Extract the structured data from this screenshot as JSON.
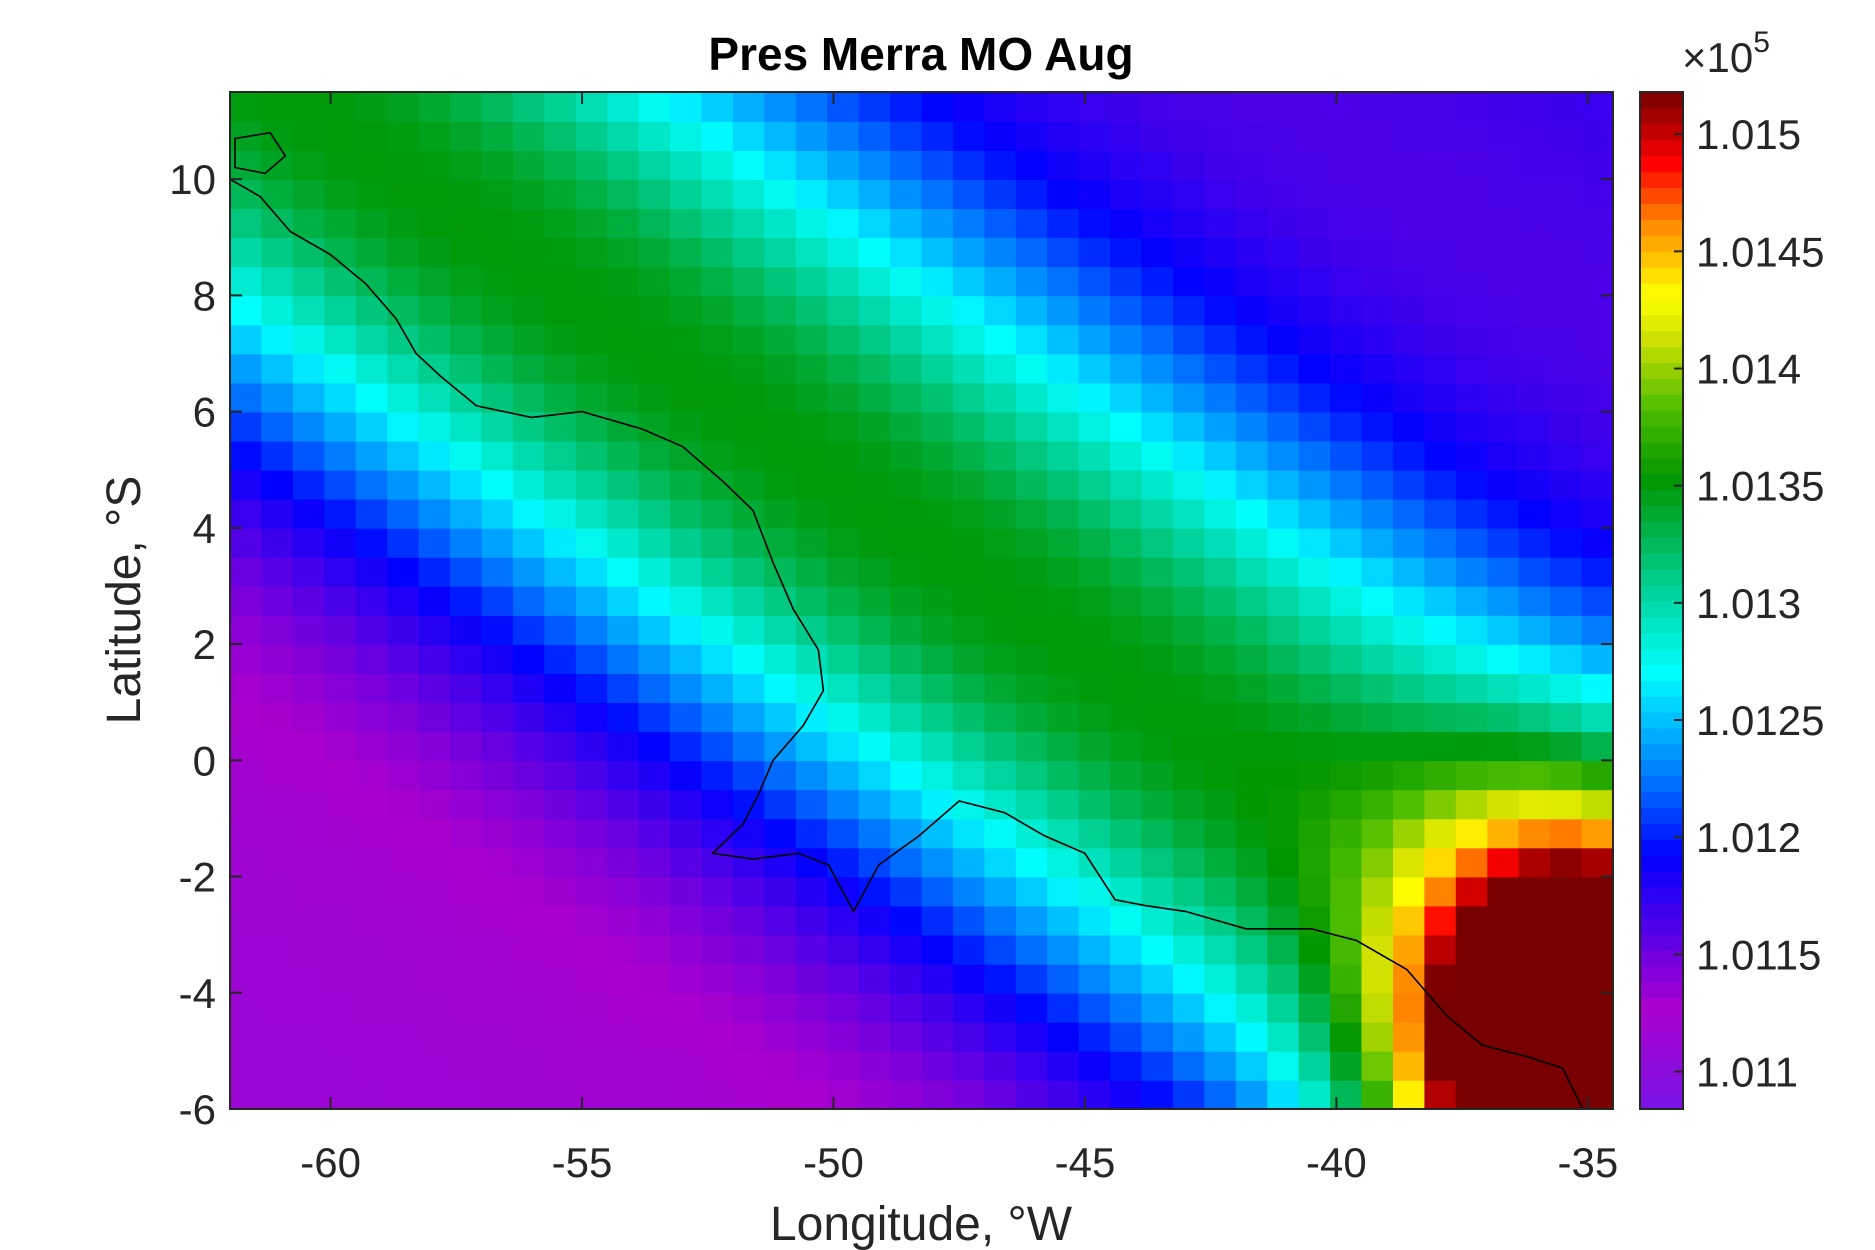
{
  "chart_data": {
    "type": "heatmap",
    "title": "Pres Merra MO Aug",
    "xlabel": "Longitude, °W",
    "ylabel": "Latitude, °S",
    "xlim": [
      -62,
      -34.5
    ],
    "ylim": [
      -6,
      11.5
    ],
    "x_ticks": [
      -60,
      -55,
      -50,
      -45,
      -40,
      -35
    ],
    "x_tick_labels": [
      "-60",
      "-55",
      "-50",
      "-45",
      "-40",
      "-35"
    ],
    "y_ticks": [
      -6,
      -4,
      -2,
      0,
      2,
      4,
      6,
      8,
      10
    ],
    "y_tick_labels": [
      "-6",
      "-4",
      "-2",
      "0",
      "2",
      "4",
      "6",
      "8",
      "10"
    ],
    "grid": false,
    "colorbar": {
      "location": "right",
      "range": [
        101084,
        101518
      ],
      "ticks": [
        101100,
        101150,
        101200,
        101250,
        101300,
        101350,
        101400,
        101450,
        101500
      ],
      "tick_labels": [
        "1.011",
        "1.0115",
        "1.012",
        "1.0125",
        "1.013",
        "1.0135",
        "1.014",
        "1.0145",
        "1.015"
      ],
      "exponent_label": "×10",
      "exponent": "5",
      "colormap": "jet-like with purple low end"
    },
    "grid_resolution_deg": [
      0.625,
      0.5
    ],
    "value_field_description": "Lowest pressure (~1.0112e5) over inland lower-left; increases to ~1.0135e5 green band along a diagonal; highest (~1.0151e5) at lower-right corner near -35,-5.5",
    "coastline": true
  }
}
